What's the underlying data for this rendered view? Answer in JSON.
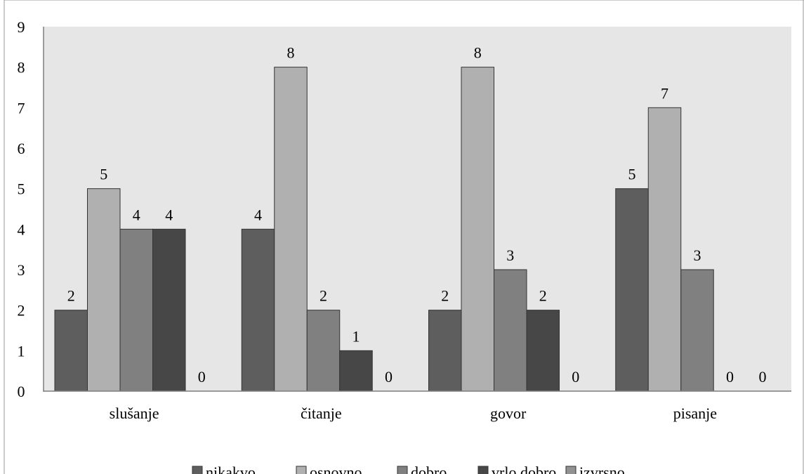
{
  "chart_data": {
    "type": "bar",
    "title": "",
    "xlabel": "",
    "ylabel": "",
    "ylim": [
      0,
      9
    ],
    "yticks": [
      "0",
      "1",
      "2",
      "3",
      "4",
      "5",
      "6",
      "7",
      "8",
      "9"
    ],
    "grid": false,
    "legend_position": "bottom",
    "categories": [
      "slušanje",
      "čitanje",
      "govor",
      "pisanje"
    ],
    "series": [
      {
        "name": "nikakvo",
        "color": "#5e5e5e",
        "values": [
          2,
          4,
          2,
          5
        ]
      },
      {
        "name": "osnovno",
        "color": "#b0b0b0",
        "values": [
          5,
          8,
          8,
          7
        ]
      },
      {
        "name": "dobro",
        "color": "#808080",
        "values": [
          4,
          2,
          3,
          3
        ]
      },
      {
        "name": "vrlo dobro",
        "color": "#474747",
        "values": [
          4,
          1,
          2,
          0
        ]
      },
      {
        "name": "izvrsno",
        "color": "#929292",
        "values": [
          0,
          0,
          0,
          0
        ]
      }
    ],
    "data_labels": [
      [
        "2",
        "5",
        "4",
        "4",
        "0"
      ],
      [
        "4",
        "8",
        "2",
        "1",
        "0"
      ],
      [
        "2",
        "8",
        "3",
        "2",
        "0"
      ],
      [
        "5",
        "7",
        "3",
        "0",
        "0"
      ]
    ],
    "plot_background": "#e6e6e6"
  }
}
